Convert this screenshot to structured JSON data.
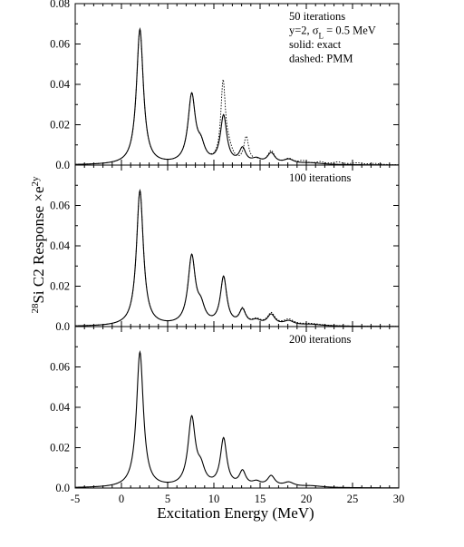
{
  "chart_data": {
    "type": "line",
    "xlabel": "Excitation Energy (MeV)",
    "ylabel": {
      "superscript_mass": "28",
      "element": "Si C2 Response ",
      "times": "×",
      "base": "e",
      "exponent": "2y"
    },
    "xlim": [
      -5,
      30
    ],
    "x_ticks": [
      "-5",
      "0",
      "5",
      "10",
      "15",
      "20",
      "25",
      "30"
    ],
    "y_tick_labels": [
      "0.0",
      "0.02",
      "0.04",
      "0.06",
      "0.08"
    ],
    "peaks": [
      {
        "x": 2.0,
        "height": 0.067,
        "width": 0.45
      },
      {
        "x": 7.6,
        "height": 0.0335,
        "width": 0.48
      },
      {
        "x": 8.6,
        "height": 0.0075,
        "width": 0.5
      },
      {
        "x": 11.05,
        "height": 0.0235,
        "width": 0.42
      },
      {
        "x": 13.1,
        "height": 0.0072,
        "width": 0.42
      },
      {
        "x": 14.6,
        "height": 0.0022,
        "width": 0.6
      },
      {
        "x": 16.2,
        "height": 0.0052,
        "width": 0.5
      },
      {
        "x": 18.1,
        "height": 0.0022,
        "width": 0.7
      },
      {
        "x": 20.5,
        "height": 0.0008,
        "width": 1.5
      }
    ],
    "panels": [
      {
        "annotation_lines": [
          "50 iterations",
          "y=2, σL = 0.5 MeV",
          "solid: exact",
          "dashed: PMM"
        ],
        "ylim": [
          0,
          0.08
        ],
        "show_top_tick_label": true,
        "pmm_peaks": [
          {
            "x": 2.0,
            "height": 0.0665,
            "width": 0.45
          },
          {
            "x": 7.6,
            "height": 0.0335,
            "width": 0.48
          },
          {
            "x": 8.6,
            "height": 0.0072,
            "width": 0.5
          },
          {
            "x": 11.0,
            "height": 0.0385,
            "width": 0.3
          },
          {
            "x": 11.6,
            "height": 0.006,
            "width": 0.5
          },
          {
            "x": 13.5,
            "height": 0.0125,
            "width": 0.32
          },
          {
            "x": 14.7,
            "height": 0.0015,
            "width": 0.6
          },
          {
            "x": 16.2,
            "height": 0.0062,
            "width": 0.45
          },
          {
            "x": 18.1,
            "height": 0.0025,
            "width": 0.6
          },
          {
            "x": 19.6,
            "height": 0.0015,
            "width": 0.6
          },
          {
            "x": 21.5,
            "height": 0.0012,
            "width": 0.6
          },
          {
            "x": 23.4,
            "height": 0.0012,
            "width": 0.6
          },
          {
            "x": 25.5,
            "height": 0.0008,
            "width": 0.7
          },
          {
            "x": 27.4,
            "height": 0.0006,
            "width": 0.7
          }
        ]
      },
      {
        "annotation_lines": [
          "100 iterations"
        ],
        "ylim": [
          0,
          0.08
        ],
        "show_top_tick_label": false,
        "pmm_peaks": [
          {
            "x": 2.0,
            "height": 0.067,
            "width": 0.45
          },
          {
            "x": 7.6,
            "height": 0.0335,
            "width": 0.48
          },
          {
            "x": 8.6,
            "height": 0.0075,
            "width": 0.5
          },
          {
            "x": 11.05,
            "height": 0.0235,
            "width": 0.42
          },
          {
            "x": 13.1,
            "height": 0.0075,
            "width": 0.42
          },
          {
            "x": 14.6,
            "height": 0.0025,
            "width": 0.6
          },
          {
            "x": 16.2,
            "height": 0.0058,
            "width": 0.5
          },
          {
            "x": 18.1,
            "height": 0.0028,
            "width": 0.7
          },
          {
            "x": 20.5,
            "height": 0.0011,
            "width": 1.5
          }
        ]
      },
      {
        "annotation_lines": [
          "200 iterations"
        ],
        "ylim": [
          0,
          0.08
        ],
        "show_top_tick_label": false,
        "pmm_peaks": []
      }
    ],
    "series": [
      {
        "name": "exact",
        "style": "solid"
      },
      {
        "name": "PMM",
        "style": "dashed"
      }
    ],
    "grid": false
  }
}
